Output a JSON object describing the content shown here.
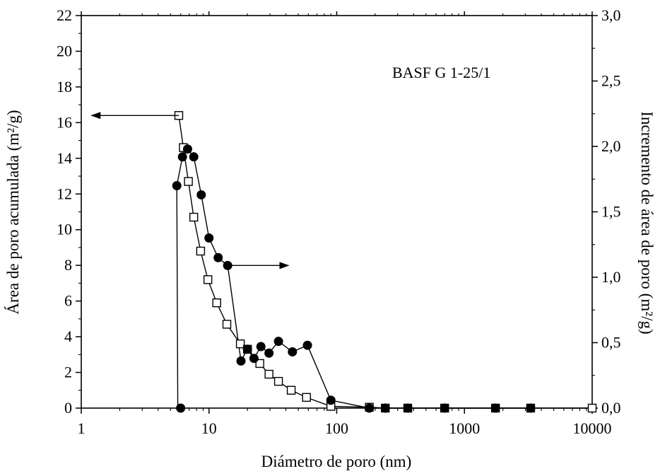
{
  "chart_data": {
    "type": "scatter",
    "annotation": "BASF G 1-25/1",
    "xlabel": "Diámetro de poro (nm)",
    "ylabel_left": "Área de poro acumulada (m²/g)",
    "ylabel_right": "Incremento de área de poro (m²/g)",
    "x_scale": "log",
    "xlim": [
      1,
      10000
    ],
    "ylim_left": [
      0,
      22
    ],
    "ylim_right": [
      0,
      3.0
    ],
    "grid": false,
    "x_ticks": [
      {
        "value": 1,
        "label": "1"
      },
      {
        "value": 10,
        "label": "10"
      },
      {
        "value": 100,
        "label": "100"
      },
      {
        "value": 1000,
        "label": "1000"
      },
      {
        "value": 10000,
        "label": "10000"
      }
    ],
    "y_left_ticks": [
      {
        "value": 0,
        "label": "0"
      },
      {
        "value": 2,
        "label": "2"
      },
      {
        "value": 4,
        "label": "4"
      },
      {
        "value": 6,
        "label": "6"
      },
      {
        "value": 8,
        "label": "8"
      },
      {
        "value": 10,
        "label": "10"
      },
      {
        "value": 12,
        "label": "12"
      },
      {
        "value": 14,
        "label": "14"
      },
      {
        "value": 16,
        "label": "16"
      },
      {
        "value": 18,
        "label": "18"
      },
      {
        "value": 20,
        "label": "20"
      },
      {
        "value": 22,
        "label": "22"
      }
    ],
    "y_right_ticks": [
      {
        "value": 0.0,
        "label": "0,0"
      },
      {
        "value": 0.5,
        "label": "0,5"
      },
      {
        "value": 1.0,
        "label": "1,0"
      },
      {
        "value": 1.5,
        "label": "1,5"
      },
      {
        "value": 2.0,
        "label": "2,0"
      },
      {
        "value": 2.5,
        "label": "2,5"
      },
      {
        "value": 3.0,
        "label": "3,0"
      }
    ],
    "series": [
      {
        "axis": "left",
        "marker": "open-square",
        "points": [
          [
            5.8,
            16.4
          ],
          [
            6.3,
            14.6
          ],
          [
            6.9,
            12.7
          ],
          [
            7.6,
            10.7
          ],
          [
            8.6,
            8.8
          ],
          [
            9.8,
            7.2
          ],
          [
            11.5,
            5.9
          ],
          [
            13.8,
            4.7
          ],
          [
            17.6,
            3.6
          ],
          [
            20,
            3.3
          ],
          [
            25,
            2.5
          ],
          [
            29.5,
            1.9
          ],
          [
            35,
            1.5
          ],
          [
            44,
            1.0
          ],
          [
            58,
            0.6
          ],
          [
            90,
            0.1
          ],
          [
            180,
            0.05
          ],
          [
            240,
            0.0
          ],
          [
            360,
            0.0
          ],
          [
            700,
            0.0
          ],
          [
            1750,
            0.0
          ],
          [
            3300,
            0.0
          ],
          [
            10000,
            0.0
          ]
        ],
        "line_points": [
          [
            5.8,
            16.4
          ],
          [
            6.3,
            14.6
          ],
          [
            6.9,
            12.7
          ],
          [
            7.6,
            10.7
          ],
          [
            8.6,
            8.8
          ],
          [
            9.8,
            7.2
          ],
          [
            11.5,
            5.9
          ],
          [
            13.8,
            4.7
          ],
          [
            17.6,
            3.6
          ],
          [
            20,
            3.3
          ],
          [
            25,
            2.5
          ],
          [
            29.5,
            1.9
          ],
          [
            35,
            1.5
          ],
          [
            44,
            1.0
          ],
          [
            58,
            0.6
          ],
          [
            90,
            0.1
          ],
          [
            180,
            0.05
          ],
          [
            240,
            0.0
          ],
          [
            360,
            0.0
          ],
          [
            700,
            0.0
          ],
          [
            1750,
            0.0
          ],
          [
            3300,
            0.0
          ],
          [
            10000,
            0.0
          ]
        ]
      },
      {
        "axis": "right",
        "marker": "filled-circle",
        "points": [
          [
            6.0,
            0.0
          ],
          [
            5.6,
            1.7
          ],
          [
            6.2,
            1.92
          ],
          [
            6.8,
            1.98
          ],
          [
            7.6,
            1.92
          ],
          [
            8.7,
            1.63
          ],
          [
            10.0,
            1.3
          ],
          [
            11.8,
            1.15
          ],
          [
            14.0,
            1.09
          ],
          [
            17.8,
            0.36
          ],
          [
            20.0,
            0.45
          ],
          [
            22.5,
            0.38
          ],
          [
            25.5,
            0.47
          ],
          [
            29.5,
            0.42
          ],
          [
            35.0,
            0.51
          ],
          [
            45.0,
            0.43
          ],
          [
            59.0,
            0.48
          ],
          [
            90.0,
            0.06
          ],
          [
            180,
            0.0
          ],
          [
            240,
            0.0
          ],
          [
            360,
            0.0
          ],
          [
            700,
            0.0
          ],
          [
            1750,
            0.0
          ],
          [
            3300,
            0.0
          ]
        ],
        "line_points": [
          [
            5.7,
            0.0
          ],
          [
            5.6,
            1.7
          ],
          [
            6.2,
            1.92
          ],
          [
            6.8,
            1.98
          ],
          [
            7.6,
            1.92
          ],
          [
            8.7,
            1.63
          ],
          [
            10.0,
            1.3
          ],
          [
            11.8,
            1.15
          ],
          [
            14.0,
            1.09
          ],
          [
            17.8,
            0.36
          ],
          [
            20.0,
            0.45
          ],
          [
            22.5,
            0.38
          ],
          [
            25.5,
            0.47
          ],
          [
            29.5,
            0.42
          ],
          [
            35.0,
            0.51
          ],
          [
            45.0,
            0.43
          ],
          [
            59.0,
            0.48
          ],
          [
            90.0,
            0.06
          ],
          [
            180,
            0.0
          ],
          [
            240,
            0.0
          ],
          [
            360,
            0.0
          ],
          [
            700,
            0.0
          ],
          [
            1750,
            0.0
          ],
          [
            3300,
            0.0
          ]
        ]
      }
    ],
    "arrows": [
      {
        "axis": "left",
        "from": [
          5.8,
          16.4
        ],
        "to": [
          1.2,
          16.4
        ]
      },
      {
        "axis": "right",
        "from": [
          14.5,
          1.09
        ],
        "to": [
          42,
          1.09
        ]
      }
    ]
  }
}
